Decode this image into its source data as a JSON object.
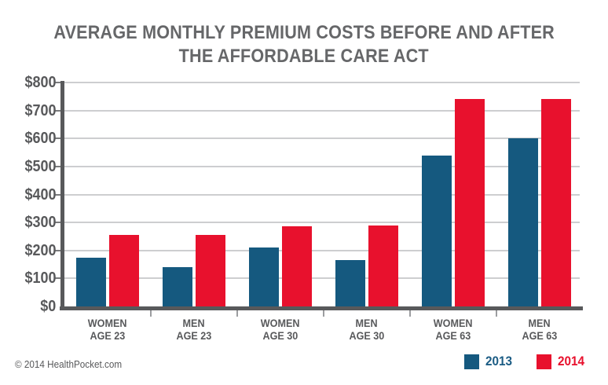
{
  "title": {
    "line1": "AVERAGE MONTHLY PREMIUM COSTS BEFORE AND AFTER",
    "line2": "THE AFFORDABLE CARE ACT"
  },
  "footer": {
    "copyright": "© 2014 HealthPocket.com"
  },
  "legend": {
    "items": [
      {
        "label": "2013",
        "color": "#15597F",
        "text_color": "#1B5C84"
      },
      {
        "label": "2014",
        "color": "#E8112D",
        "text_color": "#E8112D"
      }
    ]
  },
  "colors": {
    "bar_2013": "#15597F",
    "bar_2014": "#E8112D",
    "axis": "#58595B",
    "gridline": "#CDCED0",
    "title_text": "#666769",
    "label_text": "#58595B",
    "background": "#FFFFFF"
  },
  "chart_data": {
    "type": "bar",
    "title": "AVERAGE MONTHLY PREMIUM COSTS BEFORE AND AFTER THE AFFORDABLE CARE ACT",
    "categories": [
      "WOMEN AGE 23",
      "MEN AGE 23",
      "WOMEN AGE 30",
      "MEN AGE 30",
      "WOMEN AGE 63",
      "MEN AGE 63"
    ],
    "categories_lines": [
      [
        "WOMEN",
        "AGE 23"
      ],
      [
        "MEN",
        "AGE 23"
      ],
      [
        "WOMEN",
        "AGE 30"
      ],
      [
        "MEN",
        "AGE 30"
      ],
      [
        "WOMEN",
        "AGE 63"
      ],
      [
        "MEN",
        "AGE 63"
      ]
    ],
    "series": [
      {
        "name": "2013",
        "color": "#15597F",
        "values": [
          175,
          140,
          210,
          165,
          540,
          600
        ]
      },
      {
        "name": "2014",
        "color": "#E8112D",
        "values": [
          255,
          255,
          285,
          290,
          740,
          740
        ]
      }
    ],
    "xlabel": "",
    "ylabel": "",
    "ylim": [
      0,
      800
    ],
    "ytick_step": 100,
    "ytick_labels": [
      "$0",
      "$100",
      "$200",
      "$300",
      "$400",
      "$500",
      "$600",
      "$700",
      "$800"
    ],
    "grid": "horizontal",
    "legend_position": "bottom-right"
  }
}
